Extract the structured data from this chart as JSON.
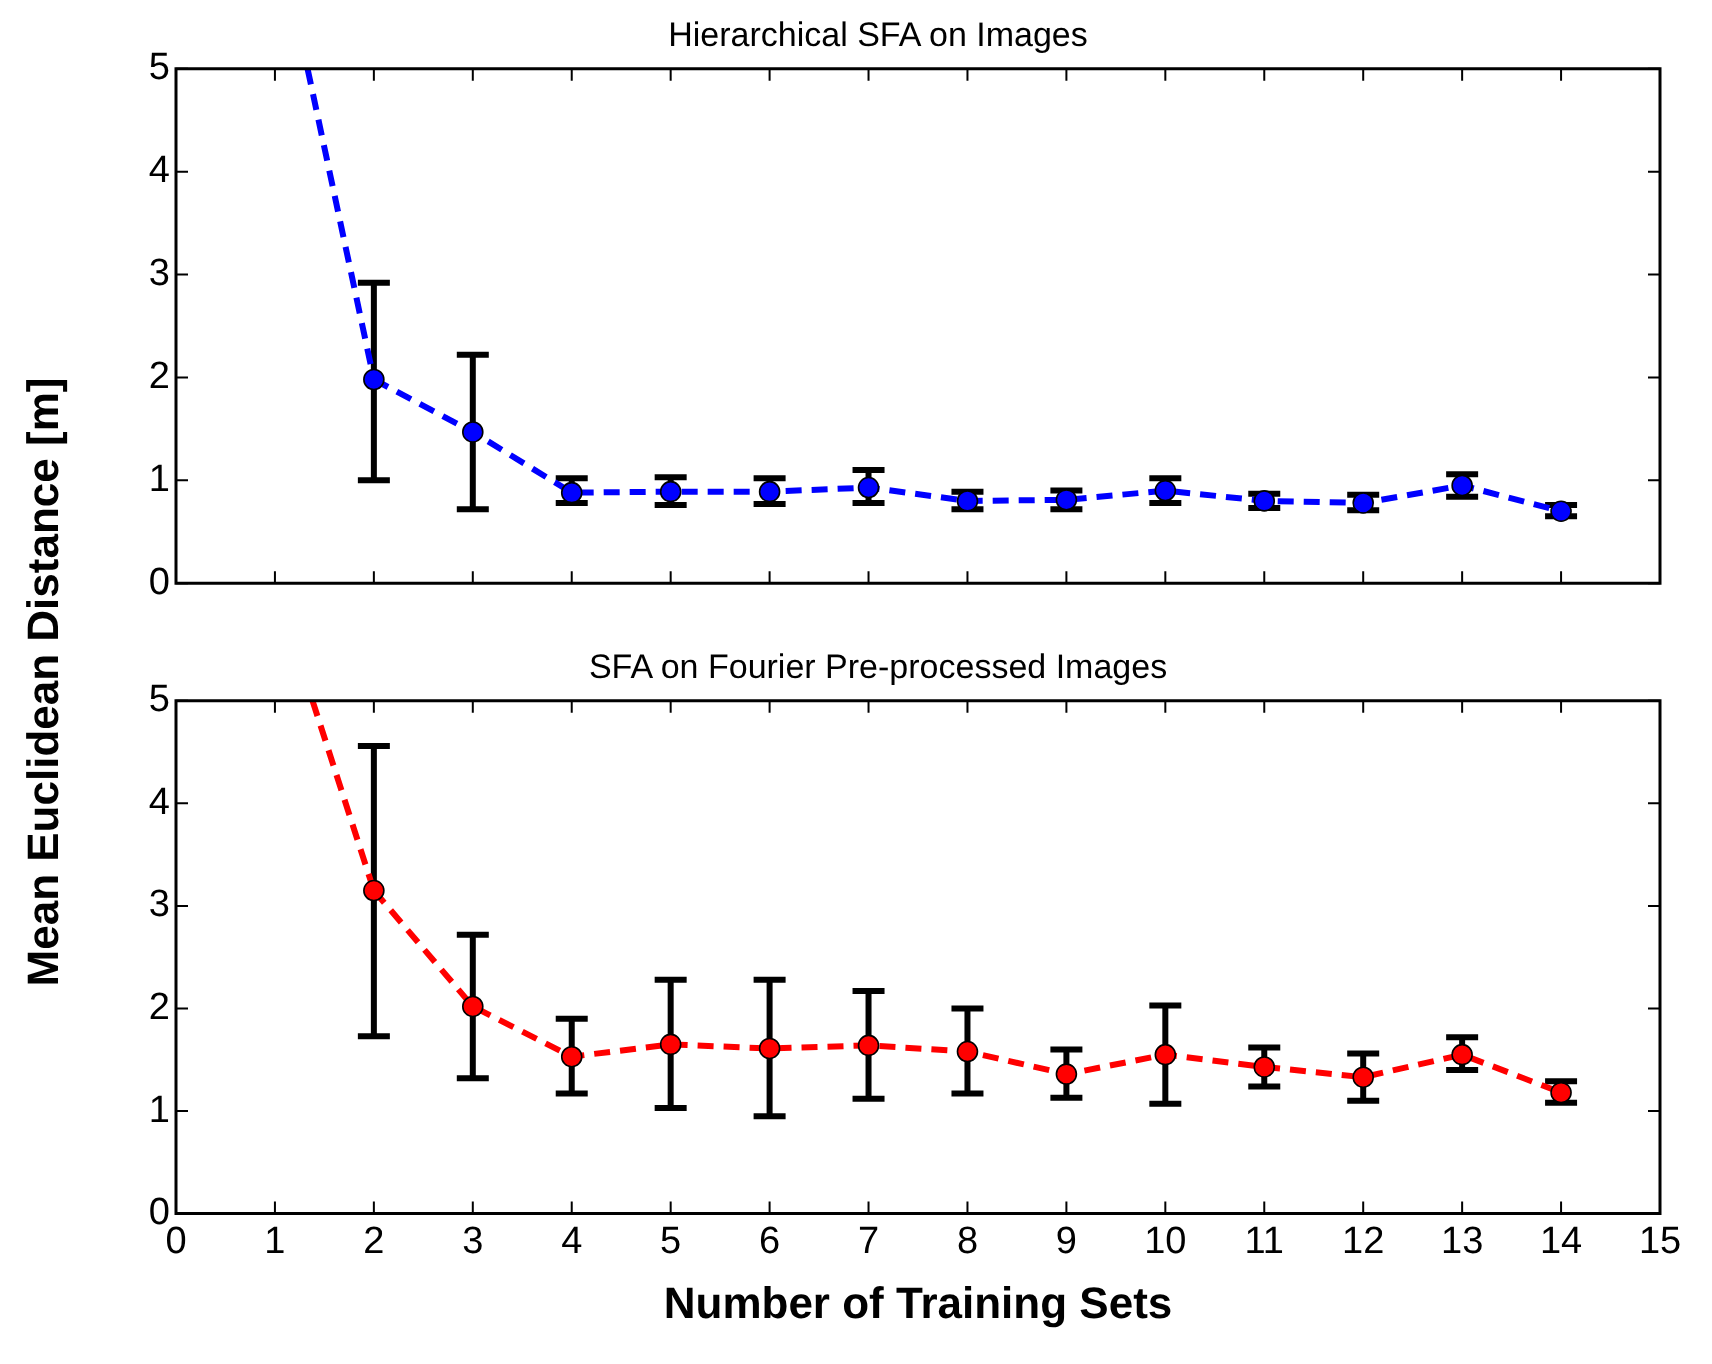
{
  "chart_data": [
    {
      "type": "line",
      "title": "Hierarchical SFA on Images",
      "ylabel": "Mean Euclidean Distance [m]",
      "xlim": [
        0,
        15
      ],
      "xticks": [
        0,
        1,
        2,
        3,
        4,
        5,
        6,
        7,
        8,
        9,
        10,
        11,
        12,
        13,
        14,
        15
      ],
      "ylim": [
        0,
        5
      ],
      "yticks": [
        0,
        1,
        2,
        3,
        4,
        5
      ],
      "tick_labels": "y",
      "grid": false,
      "legend": false,
      "series": [
        {
          "color": "#0000ff",
          "marker": "circle",
          "line_style": "dashed",
          "x": [
            2,
            3,
            4,
            5,
            6,
            7,
            8,
            9,
            10,
            11,
            12,
            13,
            14
          ],
          "values": [
            1.98,
            1.47,
            0.88,
            0.89,
            0.89,
            0.93,
            0.8,
            0.81,
            0.9,
            0.8,
            0.78,
            0.95,
            0.7
          ],
          "errors": [
            [
              1.0,
              2.92
            ],
            [
              0.72,
              2.22
            ],
            [
              0.78,
              1.02
            ],
            [
              0.76,
              1.03
            ],
            [
              0.77,
              1.02
            ],
            [
              0.78,
              1.1
            ],
            [
              0.72,
              0.89
            ],
            [
              0.72,
              0.9
            ],
            [
              0.78,
              1.02
            ],
            [
              0.73,
              0.87
            ],
            [
              0.71,
              0.86
            ],
            [
              0.84,
              1.06
            ],
            [
              0.65,
              0.76
            ]
          ]
        },
        {
          "color": "#0000ff",
          "marker": "none",
          "line_style": "dashed",
          "x": [
            1.33,
            2
          ],
          "values": [
            5,
            1.98
          ]
        }
      ]
    },
    {
      "type": "line",
      "title": "SFA on Fourier Pre-processed Images",
      "xlabel": "Number of Training Sets",
      "xlim": [
        0,
        15
      ],
      "xticks": [
        0,
        1,
        2,
        3,
        4,
        5,
        6,
        7,
        8,
        9,
        10,
        11,
        12,
        13,
        14,
        15
      ],
      "ylim": [
        0,
        5
      ],
      "yticks": [
        0,
        1,
        2,
        3,
        4,
        5
      ],
      "grid": false,
      "legend": false,
      "series": [
        {
          "color": "#ff0000",
          "marker": "circle",
          "line_style": "dashed",
          "x": [
            2,
            3,
            4,
            5,
            6,
            7,
            8,
            9,
            10,
            11,
            12,
            13,
            14
          ],
          "values": [
            3.15,
            2.02,
            1.53,
            1.65,
            1.61,
            1.64,
            1.58,
            1.36,
            1.55,
            1.43,
            1.33,
            1.55,
            1.18
          ],
          "errors": [
            [
              1.73,
              4.56
            ],
            [
              1.32,
              2.72
            ],
            [
              1.17,
              1.9
            ],
            [
              1.03,
              2.28
            ],
            [
              0.95,
              2.28
            ],
            [
              1.12,
              2.17
            ],
            [
              1.17,
              2.0
            ],
            [
              1.13,
              1.6
            ],
            [
              1.07,
              2.03
            ],
            [
              1.24,
              1.62
            ],
            [
              1.1,
              1.56
            ],
            [
              1.4,
              1.72
            ],
            [
              1.08,
              1.29
            ]
          ]
        },
        {
          "color": "#ff0000",
          "marker": "none",
          "line_style": "dashed",
          "x": [
            1.38,
            2
          ],
          "values": [
            5,
            3.15
          ]
        }
      ]
    }
  ]
}
